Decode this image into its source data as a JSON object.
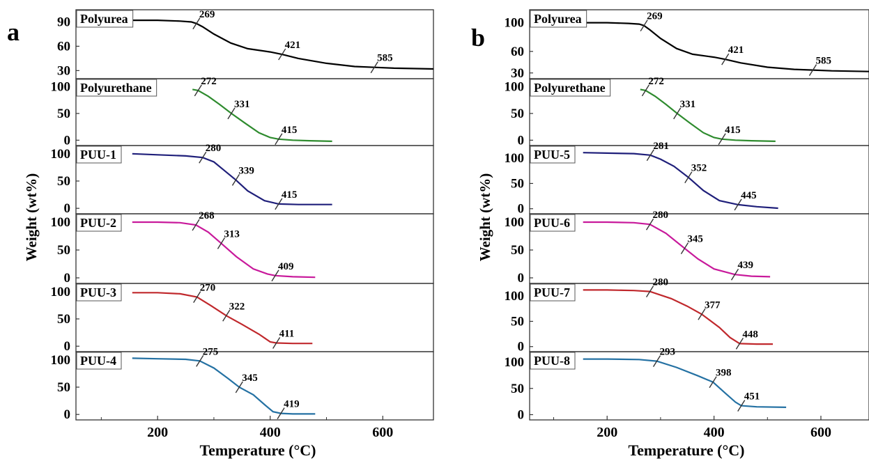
{
  "figure": {
    "ylabel": "Weight (wt%)",
    "xlabel": "Temperature (°C)",
    "xticks": [
      200,
      400,
      600
    ],
    "xlim": [
      55,
      690
    ]
  },
  "chart_data": [
    {
      "type": "line",
      "panel": "a",
      "xlabel": "Temperature (°C)",
      "ylabel": "Weight (wt%)",
      "xlim": [
        55,
        690
      ],
      "subplots": [
        {
          "name": "Polyurea",
          "color": "#000000",
          "ylim": [
            20,
            105
          ],
          "yticks": [
            30,
            60,
            90
          ],
          "x": [
            150,
            200,
            240,
            260,
            269,
            280,
            300,
            330,
            360,
            400,
            421,
            450,
            500,
            550,
            585,
            620,
            690
          ],
          "y": [
            92,
            92,
            91,
            90,
            88,
            84,
            75,
            64,
            57,
            53,
            50,
            45,
            39,
            35,
            34,
            33,
            32
          ],
          "markers": [
            {
              "x": 269,
              "label": "269"
            },
            {
              "x": 421,
              "label": "421"
            },
            {
              "x": 585,
              "label": "585"
            }
          ]
        },
        {
          "name": "Polyurethane",
          "color": "#2e8b2e",
          "ylim": [
            -10,
            115
          ],
          "yticks": [
            0,
            50,
            100
          ],
          "x": [
            262,
            272,
            290,
            310,
            331,
            355,
            380,
            400,
            415,
            440,
            470,
            510
          ],
          "y": [
            95,
            93,
            82,
            67,
            50,
            32,
            14,
            5,
            2,
            0,
            -1,
            -2
          ],
          "markers": [
            {
              "x": 272,
              "label": "272"
            },
            {
              "x": 331,
              "label": "331"
            },
            {
              "x": 415,
              "label": "415"
            }
          ]
        },
        {
          "name": "PUU-1",
          "color": "#1f1f7a",
          "ylim": [
            -10,
            115
          ],
          "yticks": [
            0,
            50,
            100
          ],
          "x": [
            155,
            200,
            250,
            280,
            300,
            320,
            339,
            360,
            390,
            415,
            450,
            510
          ],
          "y": [
            100,
            98,
            96,
            93,
            85,
            68,
            52,
            32,
            14,
            8,
            7,
            7
          ],
          "markers": [
            {
              "x": 280,
              "label": "280"
            },
            {
              "x": 339,
              "label": "339"
            },
            {
              "x": 415,
              "label": "415"
            }
          ]
        },
        {
          "name": "PUU-2",
          "color": "#c8199b",
          "ylim": [
            -10,
            115
          ],
          "yticks": [
            0,
            50,
            100
          ],
          "x": [
            155,
            200,
            240,
            268,
            290,
            313,
            340,
            370,
            395,
            409,
            440,
            480
          ],
          "y": [
            100,
            100,
            99,
            95,
            82,
            62,
            38,
            16,
            7,
            4,
            2,
            1
          ],
          "markers": [
            {
              "x": 268,
              "label": "268"
            },
            {
              "x": 313,
              "label": "313"
            },
            {
              "x": 409,
              "label": "409"
            }
          ]
        },
        {
          "name": "PUU-3",
          "color": "#c0282c",
          "ylim": [
            -10,
            115
          ],
          "yticks": [
            0,
            50,
            100
          ],
          "x": [
            155,
            200,
            240,
            270,
            295,
            322,
            350,
            380,
            400,
            411,
            440,
            475
          ],
          "y": [
            98,
            98,
            96,
            90,
            74,
            56,
            40,
            22,
            8,
            6,
            5,
            5
          ],
          "markers": [
            {
              "x": 270,
              "label": "270"
            },
            {
              "x": 322,
              "label": "322"
            },
            {
              "x": 411,
              "label": "411"
            }
          ]
        },
        {
          "name": "PUU-4",
          "color": "#2471a3",
          "ylim": [
            -10,
            115
          ],
          "yticks": [
            0,
            50,
            100
          ],
          "x": [
            155,
            200,
            250,
            275,
            300,
            325,
            345,
            370,
            390,
            405,
            419,
            440,
            480
          ],
          "y": [
            103,
            102,
            101,
            98,
            85,
            66,
            50,
            36,
            18,
            5,
            2,
            1,
            1
          ],
          "markers": [
            {
              "x": 275,
              "label": "275"
            },
            {
              "x": 345,
              "label": "345"
            },
            {
              "x": 419,
              "label": "419"
            }
          ]
        }
      ]
    },
    {
      "type": "line",
      "panel": "b",
      "xlabel": "Temperature (°C)",
      "ylabel": "Weight (wt%)",
      "xlim": [
        55,
        690
      ],
      "subplots": [
        {
          "name": "Polyurea",
          "color": "#000000",
          "ylim": [
            22,
            118
          ],
          "yticks": [
            30,
            60,
            100
          ],
          "x": [
            150,
            200,
            240,
            260,
            269,
            280,
            300,
            330,
            360,
            400,
            421,
            450,
            500,
            550,
            585,
            620,
            690
          ],
          "y": [
            100,
            100,
            99,
            98,
            96,
            90,
            78,
            64,
            56,
            52,
            49,
            44,
            38,
            35,
            34,
            33,
            32
          ],
          "markers": [
            {
              "x": 269,
              "label": "269"
            },
            {
              "x": 421,
              "label": "421"
            },
            {
              "x": 585,
              "label": "585"
            }
          ]
        },
        {
          "name": "Polyurethane",
          "color": "#2e8b2e",
          "ylim": [
            -10,
            115
          ],
          "yticks": [
            0,
            50,
            100
          ],
          "x": [
            262,
            272,
            290,
            310,
            331,
            355,
            380,
            400,
            415,
            440,
            470,
            515
          ],
          "y": [
            95,
            93,
            82,
            67,
            50,
            32,
            14,
            5,
            2,
            0,
            -1,
            -2
          ],
          "markers": [
            {
              "x": 272,
              "label": "272"
            },
            {
              "x": 331,
              "label": "331"
            },
            {
              "x": 415,
              "label": "415"
            }
          ]
        },
        {
          "name": "PUU-5",
          "color": "#1f1f7a",
          "ylim": [
            -10,
            125
          ],
          "yticks": [
            0,
            50,
            100
          ],
          "x": [
            155,
            200,
            250,
            281,
            300,
            325,
            352,
            380,
            410,
            445,
            480,
            520
          ],
          "y": [
            111,
            110,
            109,
            106,
            98,
            84,
            62,
            36,
            16,
            8,
            4,
            1
          ],
          "markers": [
            {
              "x": 281,
              "label": "281"
            },
            {
              "x": 352,
              "label": "352"
            },
            {
              "x": 445,
              "label": "445"
            }
          ]
        },
        {
          "name": "PUU-6",
          "color": "#c8199b",
          "ylim": [
            -10,
            115
          ],
          "yticks": [
            0,
            50,
            100
          ],
          "x": [
            155,
            200,
            250,
            280,
            310,
            345,
            370,
            400,
            439,
            470,
            505
          ],
          "y": [
            100,
            100,
            99,
            96,
            80,
            53,
            34,
            16,
            6,
            3,
            2
          ],
          "markers": [
            {
              "x": 280,
              "label": "280"
            },
            {
              "x": 345,
              "label": "345"
            },
            {
              "x": 439,
              "label": "439"
            }
          ]
        },
        {
          "name": "PUU-7",
          "color": "#c0282c",
          "ylim": [
            -10,
            125
          ],
          "yticks": [
            0,
            50,
            100
          ],
          "x": [
            155,
            200,
            250,
            280,
            320,
            350,
            377,
            410,
            430,
            448,
            480,
            510
          ],
          "y": [
            112,
            112,
            111,
            109,
            95,
            80,
            64,
            38,
            18,
            6,
            5,
            5
          ],
          "markers": [
            {
              "x": 280,
              "label": "280"
            },
            {
              "x": 377,
              "label": "377"
            },
            {
              "x": 448,
              "label": "448"
            }
          ]
        },
        {
          "name": "PUU-8",
          "color": "#2471a3",
          "ylim": [
            -10,
            120
          ],
          "yticks": [
            0,
            50,
            100
          ],
          "x": [
            155,
            200,
            260,
            293,
            330,
            370,
            398,
            420,
            440,
            451,
            480,
            535
          ],
          "y": [
            106,
            106,
            105,
            102,
            90,
            74,
            62,
            42,
            24,
            17,
            15,
            14
          ],
          "markers": [
            {
              "x": 293,
              "label": "293"
            },
            {
              "x": 398,
              "label": "398"
            },
            {
              "x": 451,
              "label": "451"
            }
          ]
        }
      ]
    }
  ]
}
